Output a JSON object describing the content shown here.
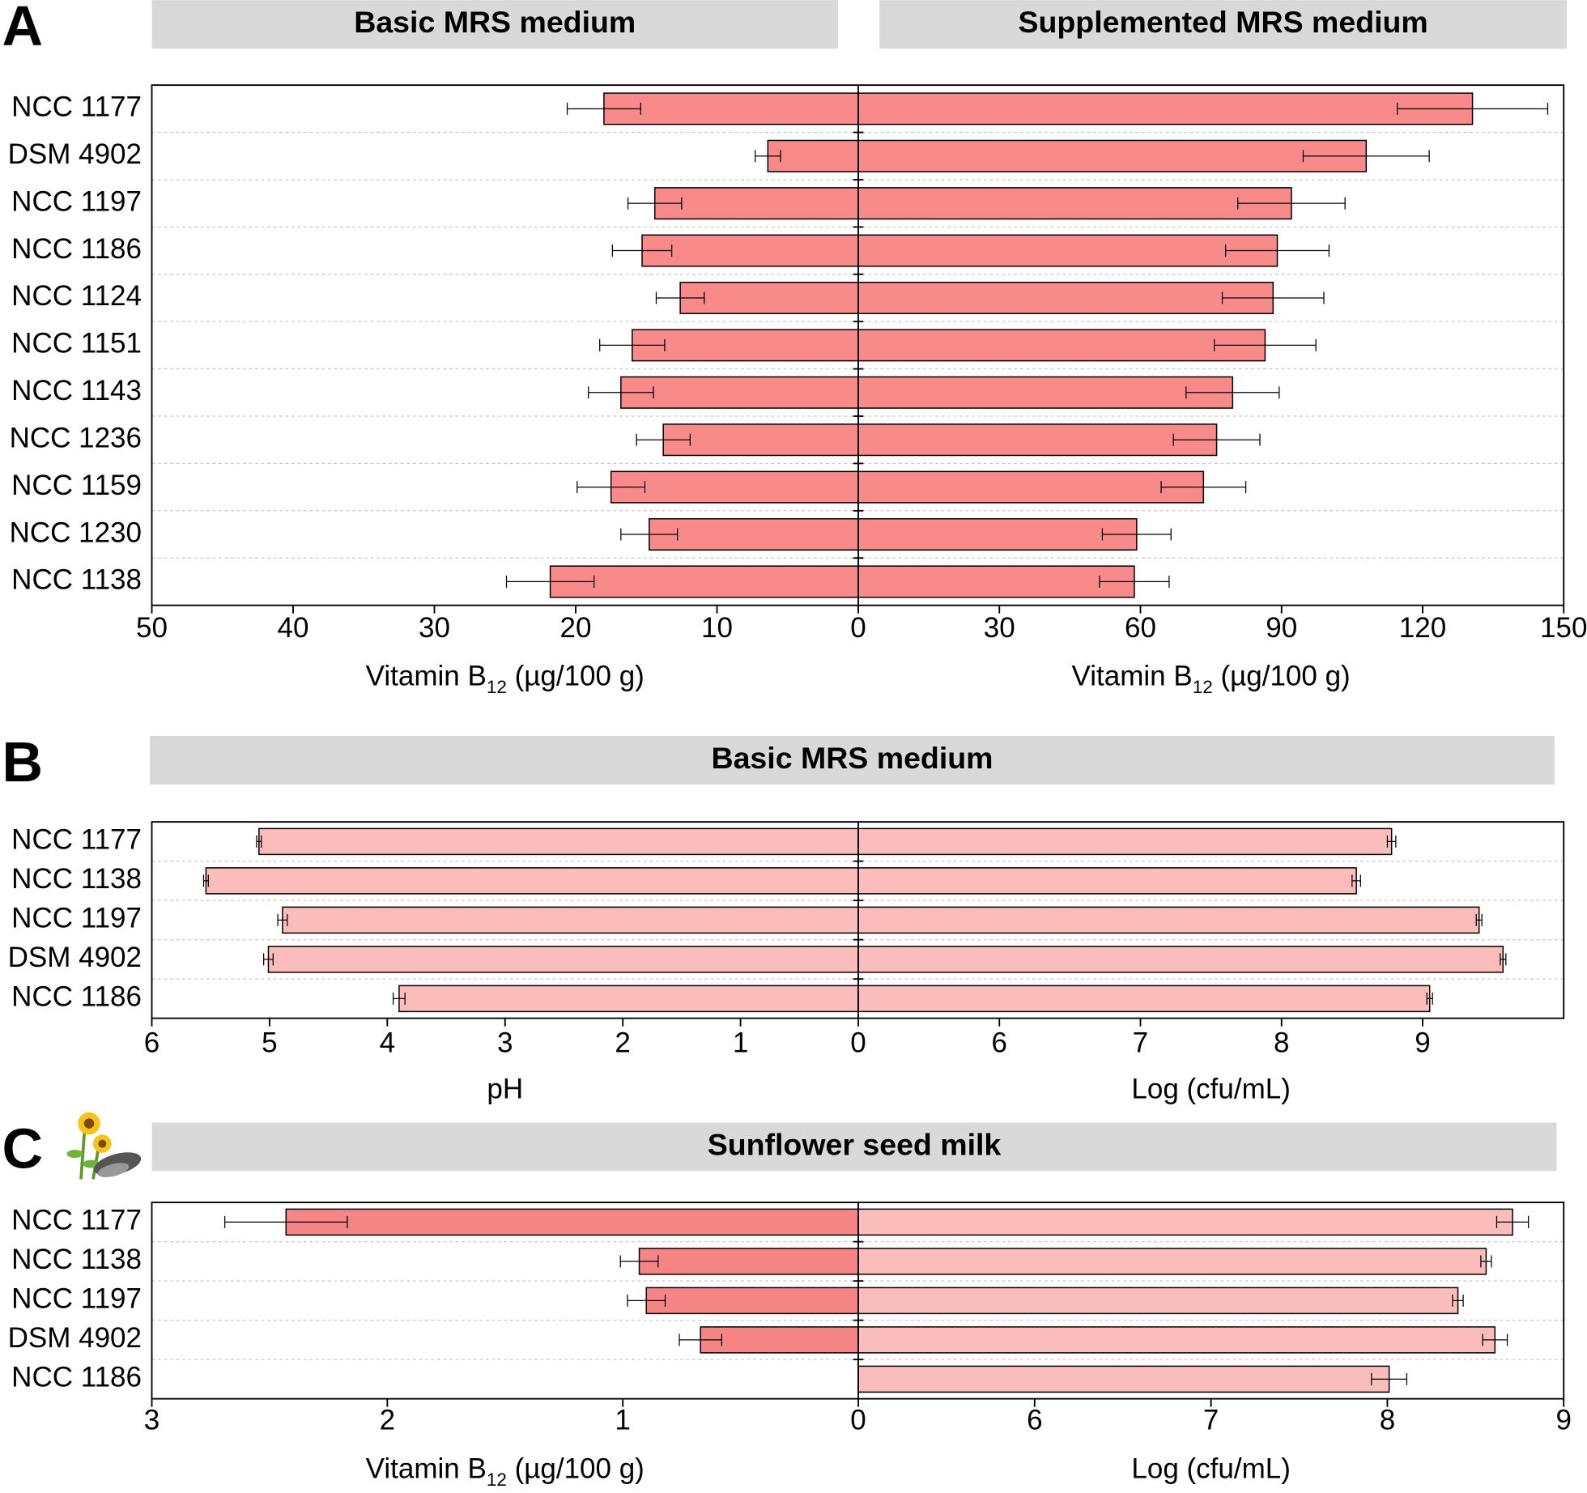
{
  "chart_data": [
    {
      "type": "mirrored_bar",
      "label": "A",
      "titles": [
        "Basic MRS medium",
        "Supplemented MRS medium"
      ],
      "categories": [
        "NCC 1177",
        "DSM 4902",
        "NCC 1197",
        "NCC 1186",
        "NCC 1124",
        "NCC 1151",
        "NCC 1143",
        "NCC 1236",
        "NCC 1159",
        "NCC 1230",
        "NCC 1138"
      ],
      "series": [
        {
          "color": "#f98a8a",
          "values": [
            18.0,
            6.4,
            14.4,
            15.3,
            12.6,
            16.0,
            16.8,
            13.8,
            17.5,
            14.8,
            21.8
          ],
          "errors": [
            2.6,
            0.9,
            1.9,
            2.1,
            1.7,
            2.3,
            2.3,
            1.9,
            2.4,
            2.0,
            3.1
          ],
          "xlim": [
            50,
            0
          ],
          "xticks": [
            50,
            40,
            30,
            20,
            10,
            0
          ],
          "xlabel": {
            "main": "Vitamin B",
            "subscript": "12",
            "after": " (µg/100 g)"
          }
        },
        {
          "color": "#f98a8a",
          "values": [
            130.6,
            108,
            92.1,
            89.1,
            88.2,
            86.5,
            79.6,
            76.2,
            73.4,
            59.2,
            58.7
          ],
          "errors": [
            16,
            13.4,
            11.4,
            11,
            10.8,
            10.8,
            9.9,
            9.2,
            9,
            7.3,
            7.4
          ],
          "xlim": [
            0,
            150
          ],
          "xticks": [
            30,
            60,
            90,
            120,
            150
          ],
          "xlabel": {
            "main": "Vitamin B",
            "subscript": "12",
            "after": " (µg/100 g)"
          }
        }
      ]
    },
    {
      "type": "mirrored_bar",
      "label": "B",
      "titles": [
        "Basic MRS medium"
      ],
      "categories": [
        "NCC 1177",
        "NCC 1138",
        "NCC 1197",
        "DSM 4902",
        "NCC 1186"
      ],
      "series": [
        {
          "color": "#fbbcbc",
          "values": [
            5.09,
            5.54,
            4.89,
            5.01,
            3.9
          ],
          "errors": [
            0.02,
            0.02,
            0.04,
            0.04,
            0.05
          ],
          "xlim": [
            6,
            0
          ],
          "xticks": [
            6,
            5,
            4,
            3,
            2,
            1,
            0
          ],
          "xlabel": {
            "main": "pH"
          }
        },
        {
          "color": "#fbbcbc",
          "values": [
            8.78,
            8.53,
            9.4,
            9.57,
            9.05
          ],
          "errors": [
            0.03,
            0.03,
            0.02,
            0.02,
            0.02
          ],
          "xlim": [
            5,
            10
          ],
          "xticks": [
            6,
            7,
            8,
            9
          ],
          "xlabel": {
            "main": "Log (cfu/mL)"
          }
        }
      ]
    },
    {
      "type": "mirrored_bar",
      "label": "C",
      "titles": [
        "Sunflower seed milk"
      ],
      "categories": [
        "NCC 1177",
        "NCC 1138",
        "NCC 1197",
        "DSM 4902",
        "NCC 1186"
      ],
      "series": [
        {
          "color": "#f58585",
          "values": [
            2.43,
            0.93,
            0.9,
            0.67,
            null
          ],
          "errors": [
            0.26,
            0.08,
            0.08,
            0.09,
            null
          ],
          "xlim": [
            3,
            0
          ],
          "xticks": [
            3,
            2,
            1,
            0
          ],
          "xlabel": {
            "main": "Vitamin B",
            "subscript": "12",
            "after": " (µg/100 g)"
          }
        },
        {
          "color": "#fbbcbc",
          "values": [
            8.71,
            8.56,
            8.4,
            8.61,
            8.01
          ],
          "errors": [
            0.09,
            0.03,
            0.03,
            0.07,
            0.1
          ],
          "xlim": [
            5,
            9
          ],
          "xticks": [
            6,
            7,
            8,
            9
          ],
          "xlabel": {
            "main": "Log (cfu/mL)"
          }
        }
      ]
    }
  ]
}
